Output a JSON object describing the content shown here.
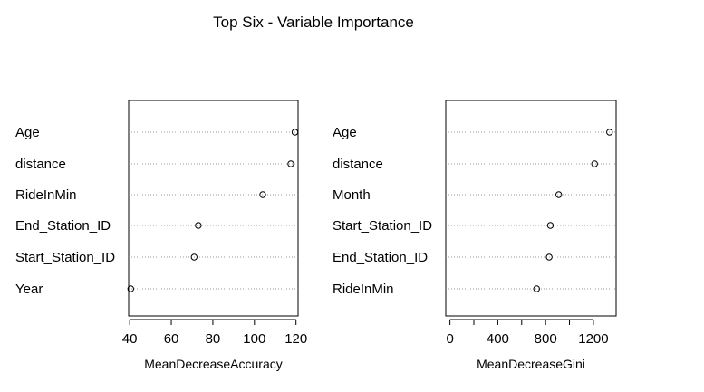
{
  "title": "Top Six - Variable Importance",
  "chart_data": [
    {
      "type": "dotchart",
      "xlabel": "MeanDecreaseAccuracy",
      "xlim": [
        39.5,
        121
      ],
      "ticks": [
        40,
        60,
        80,
        100,
        120
      ],
      "grid": "dotted horizontal",
      "points": [
        {
          "label": "Age",
          "value": 119.5
        },
        {
          "label": "distance",
          "value": 117.5
        },
        {
          "label": "RideInMin",
          "value": 104
        },
        {
          "label": "End_Station_ID",
          "value": 73
        },
        {
          "label": "Start_Station_ID",
          "value": 71
        },
        {
          "label": "Year",
          "value": 40.5
        }
      ]
    },
    {
      "type": "dotchart",
      "xlabel": "MeanDecreaseGini",
      "xlim": [
        -35,
        1390
      ],
      "ticks": [
        0,
        200,
        400,
        600,
        800,
        1000,
        1200
      ],
      "tick_labels": [
        "0",
        "",
        "400",
        "",
        "800",
        "",
        "1200"
      ],
      "grid": "dotted horizontal",
      "points": [
        {
          "label": "Age",
          "value": 1335
        },
        {
          "label": "distance",
          "value": 1210
        },
        {
          "label": "Month",
          "value": 910
        },
        {
          "label": "Start_Station_ID",
          "value": 840
        },
        {
          "label": "End_Station_ID",
          "value": 830
        },
        {
          "label": "RideInMin",
          "value": 725
        }
      ]
    }
  ]
}
